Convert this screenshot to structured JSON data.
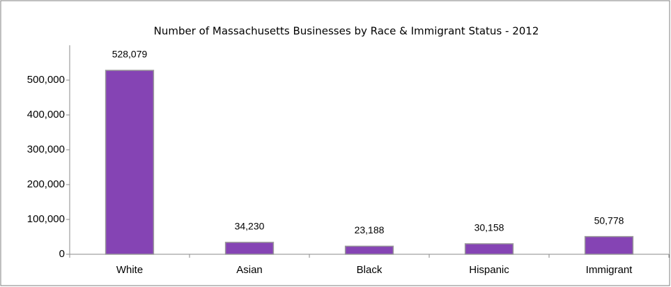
{
  "chart_data": {
    "type": "bar",
    "title": "Number of  Massachusetts Businesses by Race & Immigrant Status - 2012",
    "categories": [
      "White",
      "Asian",
      "Black",
      "Hispanic",
      "Immigrant"
    ],
    "values": [
      528079,
      34230,
      23188,
      30158,
      50778
    ],
    "value_labels": [
      "528,079",
      "34,230",
      "23,188",
      "30,158",
      "50,778"
    ],
    "color": "#8544b4",
    "ylim": [
      0,
      600000
    ],
    "yticks": [
      0,
      {
        "value": 100000,
        "label": "100,000"
      },
      {
        "value": 200000,
        "label": "200,000"
      },
      {
        "value": 300000,
        "label": "300,000"
      },
      {
        "value": 400000,
        "label": "400,000"
      },
      {
        "value": 500000,
        "label": "500,000"
      }
    ],
    "grid": false
  }
}
